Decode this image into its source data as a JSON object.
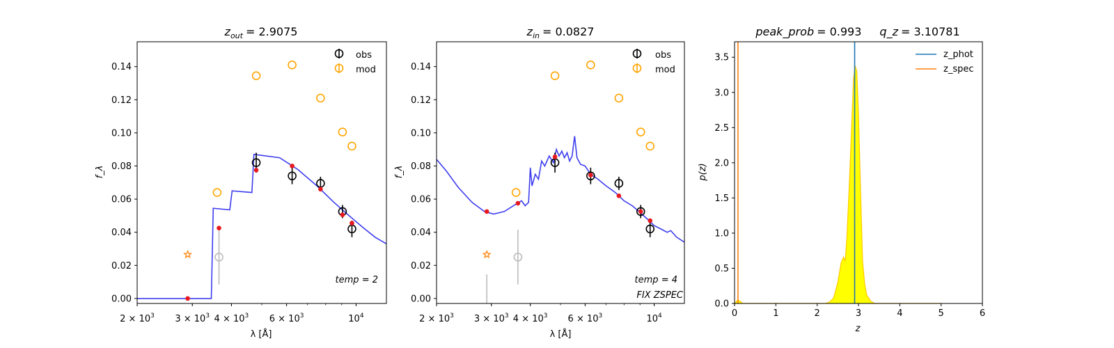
{
  "chart_data": [
    {
      "type": "scatter",
      "title": "z_out = 2.9075",
      "title_prefix": "z",
      "title_sub": "out",
      "title_value": "= 2.9075",
      "xlabel": "λ [Å]",
      "ylabel": "f_λ",
      "x_scale": "log",
      "xlim": [
        2000,
        12500
      ],
      "ylim": [
        -0.003,
        0.155
      ],
      "x_ticks": [
        {
          "value": 2000,
          "mant": "2 × 10",
          "exp": "3"
        },
        {
          "value": 3000,
          "mant": "3 × 10",
          "exp": "3"
        },
        {
          "value": 4000,
          "mant": "4 × 10",
          "exp": "3"
        },
        {
          "value": 6000,
          "mant": "6 × 10",
          "exp": "3"
        },
        {
          "value": 10000,
          "mant": "10",
          "exp": "4"
        }
      ],
      "y_ticks": [
        "0.00",
        "0.02",
        "0.04",
        "0.06",
        "0.08",
        "0.10",
        "0.12",
        "0.14"
      ],
      "legend": [
        "obs",
        "mod"
      ],
      "legend_position": "top-right",
      "annotation": "temp = 2",
      "annotation2": "",
      "series": [
        {
          "name": "obs",
          "color": "#000000",
          "points": [
            {
              "x": 4800,
              "y": 0.082,
              "err": 0.006
            },
            {
              "x": 6250,
              "y": 0.074,
              "err": 0.005
            },
            {
              "x": 7700,
              "y": 0.0695,
              "err": 0.004
            },
            {
              "x": 9050,
              "y": 0.0525,
              "err": 0.004
            },
            {
              "x": 9700,
              "y": 0.042,
              "err": 0.005
            }
          ]
        },
        {
          "name": "mod",
          "color": "#FFA500",
          "points": [
            {
              "x": 3600,
              "y": 0.064
            },
            {
              "x": 4800,
              "y": 0.1345
            },
            {
              "x": 6250,
              "y": 0.141
            },
            {
              "x": 7700,
              "y": 0.121
            },
            {
              "x": 9050,
              "y": 0.1005
            },
            {
              "x": 9700,
              "y": 0.092
            }
          ]
        },
        {
          "name": "",
          "color": "#bbbbbb",
          "role": "nondetection",
          "points": [
            {
              "x": 3650,
              "y": 0.025,
              "err": 0.0165
            }
          ]
        },
        {
          "name": "",
          "color": "#FF8C1A",
          "role": "star",
          "points": [
            {
              "x": 2900,
              "y": 0.0265
            }
          ]
        },
        {
          "name": "",
          "color": "#e8181e",
          "role": "template-points",
          "points": [
            {
              "x": 2900,
              "y": 0.0
            },
            {
              "x": 3650,
              "y": 0.0425
            },
            {
              "x": 4800,
              "y": 0.0775
            },
            {
              "x": 6250,
              "y": 0.08
            },
            {
              "x": 7700,
              "y": 0.066
            },
            {
              "x": 9050,
              "y": 0.0505
            },
            {
              "x": 9700,
              "y": 0.0455
            }
          ]
        },
        {
          "name": "",
          "color": "#3333ee",
          "role": "template-line",
          "points": [
            {
              "x": 2000,
              "y": 0.0
            },
            {
              "x": 3450,
              "y": 0.0
            },
            {
              "x": 3500,
              "y": 0.0545
            },
            {
              "x": 3950,
              "y": 0.0535
            },
            {
              "x": 4020,
              "y": 0.065
            },
            {
              "x": 4650,
              "y": 0.064
            },
            {
              "x": 4720,
              "y": 0.087
            },
            {
              "x": 5700,
              "y": 0.085
            },
            {
              "x": 6500,
              "y": 0.078
            },
            {
              "x": 7500,
              "y": 0.068
            },
            {
              "x": 8500,
              "y": 0.058
            },
            {
              "x": 9500,
              "y": 0.05
            },
            {
              "x": 10500,
              "y": 0.043
            },
            {
              "x": 11500,
              "y": 0.037
            },
            {
              "x": 12500,
              "y": 0.033
            }
          ]
        }
      ]
    },
    {
      "type": "scatter",
      "title": "z_in = 0.0827",
      "title_prefix": "z",
      "title_sub": "in",
      "title_value": "= 0.0827",
      "xlabel": "λ [Å]",
      "ylabel": "f_λ",
      "x_scale": "log",
      "xlim": [
        2000,
        12500
      ],
      "ylim": [
        -0.003,
        0.155
      ],
      "x_ticks": [
        {
          "value": 2000,
          "mant": "2 × 10",
          "exp": "3"
        },
        {
          "value": 3000,
          "mant": "3 × 10",
          "exp": "3"
        },
        {
          "value": 4000,
          "mant": "4 × 10",
          "exp": "3"
        },
        {
          "value": 6000,
          "mant": "6 × 10",
          "exp": "3"
        },
        {
          "value": 10000,
          "mant": "10",
          "exp": "4"
        }
      ],
      "y_ticks": [
        "0.00",
        "0.02",
        "0.04",
        "0.06",
        "0.08",
        "0.10",
        "0.12",
        "0.14"
      ],
      "legend": [
        "obs",
        "mod"
      ],
      "legend_position": "top-right",
      "annotation": "temp = 4",
      "annotation2": "FIX ZSPEC",
      "series": [
        {
          "name": "obs",
          "color": "#000000",
          "points": [
            {
              "x": 4800,
              "y": 0.082,
              "err": 0.006
            },
            {
              "x": 6250,
              "y": 0.074,
              "err": 0.005
            },
            {
              "x": 7700,
              "y": 0.0695,
              "err": 0.004
            },
            {
              "x": 9050,
              "y": 0.0525,
              "err": 0.004
            },
            {
              "x": 9700,
              "y": 0.042,
              "err": 0.005
            }
          ]
        },
        {
          "name": "mod",
          "color": "#FFA500",
          "points": [
            {
              "x": 3600,
              "y": 0.064
            },
            {
              "x": 4800,
              "y": 0.1345
            },
            {
              "x": 6250,
              "y": 0.141
            },
            {
              "x": 7700,
              "y": 0.121
            },
            {
              "x": 9050,
              "y": 0.1005
            },
            {
              "x": 9700,
              "y": 0.092
            }
          ]
        },
        {
          "name": "",
          "color": "#bbbbbb",
          "role": "nondetection",
          "points": [
            {
              "x": 3650,
              "y": 0.025,
              "err": 0.0165
            },
            {
              "x": 2900,
              "y": -0.003,
              "err": 0.0175,
              "line_only": true
            }
          ]
        },
        {
          "name": "",
          "color": "#FF8C1A",
          "role": "star",
          "points": [
            {
              "x": 2900,
              "y": 0.0265
            }
          ]
        },
        {
          "name": "",
          "color": "#e8181e",
          "role": "template-points",
          "points": [
            {
              "x": 2900,
              "y": 0.0525
            },
            {
              "x": 3650,
              "y": 0.0575
            },
            {
              "x": 4800,
              "y": 0.0855
            },
            {
              "x": 6250,
              "y": 0.0745
            },
            {
              "x": 7700,
              "y": 0.062
            },
            {
              "x": 9050,
              "y": 0.0525
            },
            {
              "x": 9700,
              "y": 0.047
            }
          ]
        },
        {
          "name": "",
          "color": "#3333ee",
          "role": "template-line",
          "points": [
            {
              "x": 2000,
              "y": 0.084
            },
            {
              "x": 2150,
              "y": 0.077
            },
            {
              "x": 2350,
              "y": 0.067
            },
            {
              "x": 2600,
              "y": 0.058
            },
            {
              "x": 2850,
              "y": 0.0525
            },
            {
              "x": 3050,
              "y": 0.051
            },
            {
              "x": 3300,
              "y": 0.0525
            },
            {
              "x": 3600,
              "y": 0.057
            },
            {
              "x": 3750,
              "y": 0.059
            },
            {
              "x": 3850,
              "y": 0.056
            },
            {
              "x": 3950,
              "y": 0.058
            },
            {
              "x": 4000,
              "y": 0.079
            },
            {
              "x": 4050,
              "y": 0.068
            },
            {
              "x": 4150,
              "y": 0.075
            },
            {
              "x": 4250,
              "y": 0.072
            },
            {
              "x": 4350,
              "y": 0.083
            },
            {
              "x": 4450,
              "y": 0.08
            },
            {
              "x": 4600,
              "y": 0.086
            },
            {
              "x": 4750,
              "y": 0.082
            },
            {
              "x": 4850,
              "y": 0.09
            },
            {
              "x": 4950,
              "y": 0.086
            },
            {
              "x": 5050,
              "y": 0.089
            },
            {
              "x": 5150,
              "y": 0.085
            },
            {
              "x": 5250,
              "y": 0.088
            },
            {
              "x": 5350,
              "y": 0.083
            },
            {
              "x": 5450,
              "y": 0.086
            },
            {
              "x": 5550,
              "y": 0.098
            },
            {
              "x": 5650,
              "y": 0.085
            },
            {
              "x": 5800,
              "y": 0.081
            },
            {
              "x": 6000,
              "y": 0.08
            },
            {
              "x": 6250,
              "y": 0.075
            },
            {
              "x": 6600,
              "y": 0.072
            },
            {
              "x": 7000,
              "y": 0.068
            },
            {
              "x": 7500,
              "y": 0.064
            },
            {
              "x": 8000,
              "y": 0.059
            },
            {
              "x": 8500,
              "y": 0.056
            },
            {
              "x": 9000,
              "y": 0.052
            },
            {
              "x": 9500,
              "y": 0.048
            },
            {
              "x": 10000,
              "y": 0.044
            },
            {
              "x": 10500,
              "y": 0.042
            },
            {
              "x": 11000,
              "y": 0.04
            },
            {
              "x": 11300,
              "y": 0.041
            },
            {
              "x": 11800,
              "y": 0.037
            },
            {
              "x": 12500,
              "y": 0.034
            }
          ]
        }
      ]
    },
    {
      "type": "area",
      "title": "peak_prob = 0.993     q_z = 3.10781",
      "title_left_name": "peak_prob",
      "title_left_value": "= 0.993",
      "title_right_name": "q_z",
      "title_right_value": "= 3.10781",
      "xlabel": "z",
      "ylabel": "p(z)",
      "xlim": [
        0,
        6
      ],
      "ylim": [
        0,
        3.72
      ],
      "x_ticks": [
        "0",
        "1",
        "2",
        "3",
        "4",
        "5",
        "6"
      ],
      "y_ticks": [
        "0.0",
        "0.5",
        "1.0",
        "1.5",
        "2.0",
        "2.5",
        "3.0",
        "3.5"
      ],
      "legend": [
        "z_phot",
        "z_spec"
      ],
      "legend_position": "top-right",
      "series": [
        {
          "name": "z_phot",
          "color": "#1f77b4",
          "role": "vline",
          "x": 2.9075
        },
        {
          "name": "z_spec",
          "color": "#ff7f0e",
          "role": "vline",
          "x": 0.0827
        },
        {
          "name": "",
          "color": "#FFFF00",
          "edge": "#FFC800",
          "role": "pdf",
          "points": [
            {
              "x": 0.0,
              "y": 0.0
            },
            {
              "x": 0.03,
              "y": 0.02
            },
            {
              "x": 0.08,
              "y": 0.05
            },
            {
              "x": 0.14,
              "y": 0.03
            },
            {
              "x": 0.2,
              "y": 0.0
            },
            {
              "x": 2.2,
              "y": 0.0
            },
            {
              "x": 2.3,
              "y": 0.02
            },
            {
              "x": 2.4,
              "y": 0.08
            },
            {
              "x": 2.5,
              "y": 0.3
            },
            {
              "x": 2.58,
              "y": 0.58
            },
            {
              "x": 2.64,
              "y": 0.66
            },
            {
              "x": 2.68,
              "y": 0.6
            },
            {
              "x": 2.72,
              "y": 0.95
            },
            {
              "x": 2.78,
              "y": 1.7
            },
            {
              "x": 2.84,
              "y": 2.6
            },
            {
              "x": 2.88,
              "y": 3.2
            },
            {
              "x": 2.92,
              "y": 3.38
            },
            {
              "x": 2.96,
              "y": 3.3
            },
            {
              "x": 3.0,
              "y": 2.7
            },
            {
              "x": 3.05,
              "y": 1.6
            },
            {
              "x": 3.1,
              "y": 0.6
            },
            {
              "x": 3.15,
              "y": 0.28
            },
            {
              "x": 3.2,
              "y": 0.12
            },
            {
              "x": 3.3,
              "y": 0.03
            },
            {
              "x": 3.4,
              "y": 0.0
            },
            {
              "x": 5.0,
              "y": 0.0
            }
          ]
        }
      ]
    }
  ]
}
